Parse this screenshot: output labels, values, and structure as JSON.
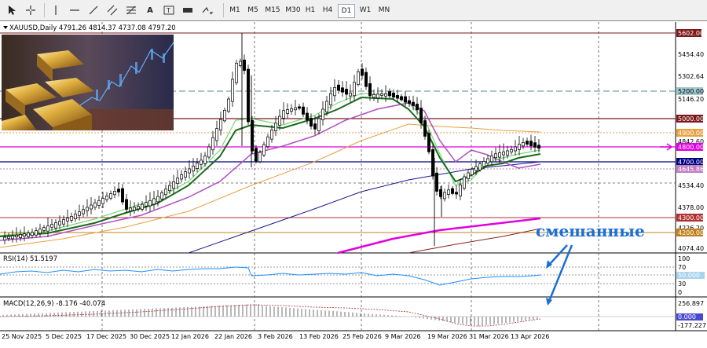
{
  "toolbar": {
    "timeframes": [
      "M1",
      "M5",
      "M15",
      "M30",
      "H1",
      "H4",
      "D1",
      "W1",
      "MN"
    ],
    "active_timeframe": "D1"
  },
  "chart": {
    "symbol_info": "XAUUSD,Daily  4791.26 4814.37 4737.08 4797.20",
    "price_labels": [
      "5602.00",
      "5454.40",
      "5302.64",
      "5200.00",
      "5146.20",
      "5000.00",
      "4900.00",
      "4842.60",
      "4800.00",
      "4700.00",
      "4645.86",
      "4534.40",
      "4378.00",
      "4300.00",
      "4226.20",
      "4200.00",
      "4074.40"
    ],
    "annotation": "смешанные",
    "colors": {
      "accent_magenta": "#e000e0",
      "navy": "#000080",
      "orange": "#e8a040",
      "maroon": "#7a1a1a"
    }
  },
  "rsi": {
    "title": "RSI(14) 51.5197",
    "scale": [
      "100",
      "70",
      "50.000",
      "30",
      "0"
    ]
  },
  "macd": {
    "title": "MACD(12,26,9) -8.176 -40.074",
    "scale": [
      "256.897",
      "0.000",
      "-177.227"
    ]
  },
  "dates": [
    "25 Nov 2025",
    "5 Dec 2025",
    "17 Dec 2025",
    "30 Dec 2025",
    "12 Jan 2026",
    "22 Jan 2026",
    "3 Feb 2026",
    "13 Feb 2026",
    "25 Feb 2026",
    "9 Mar 2026",
    "19 Mar 2026",
    "31 Mar 2026",
    "13 Apr 2026"
  ]
}
